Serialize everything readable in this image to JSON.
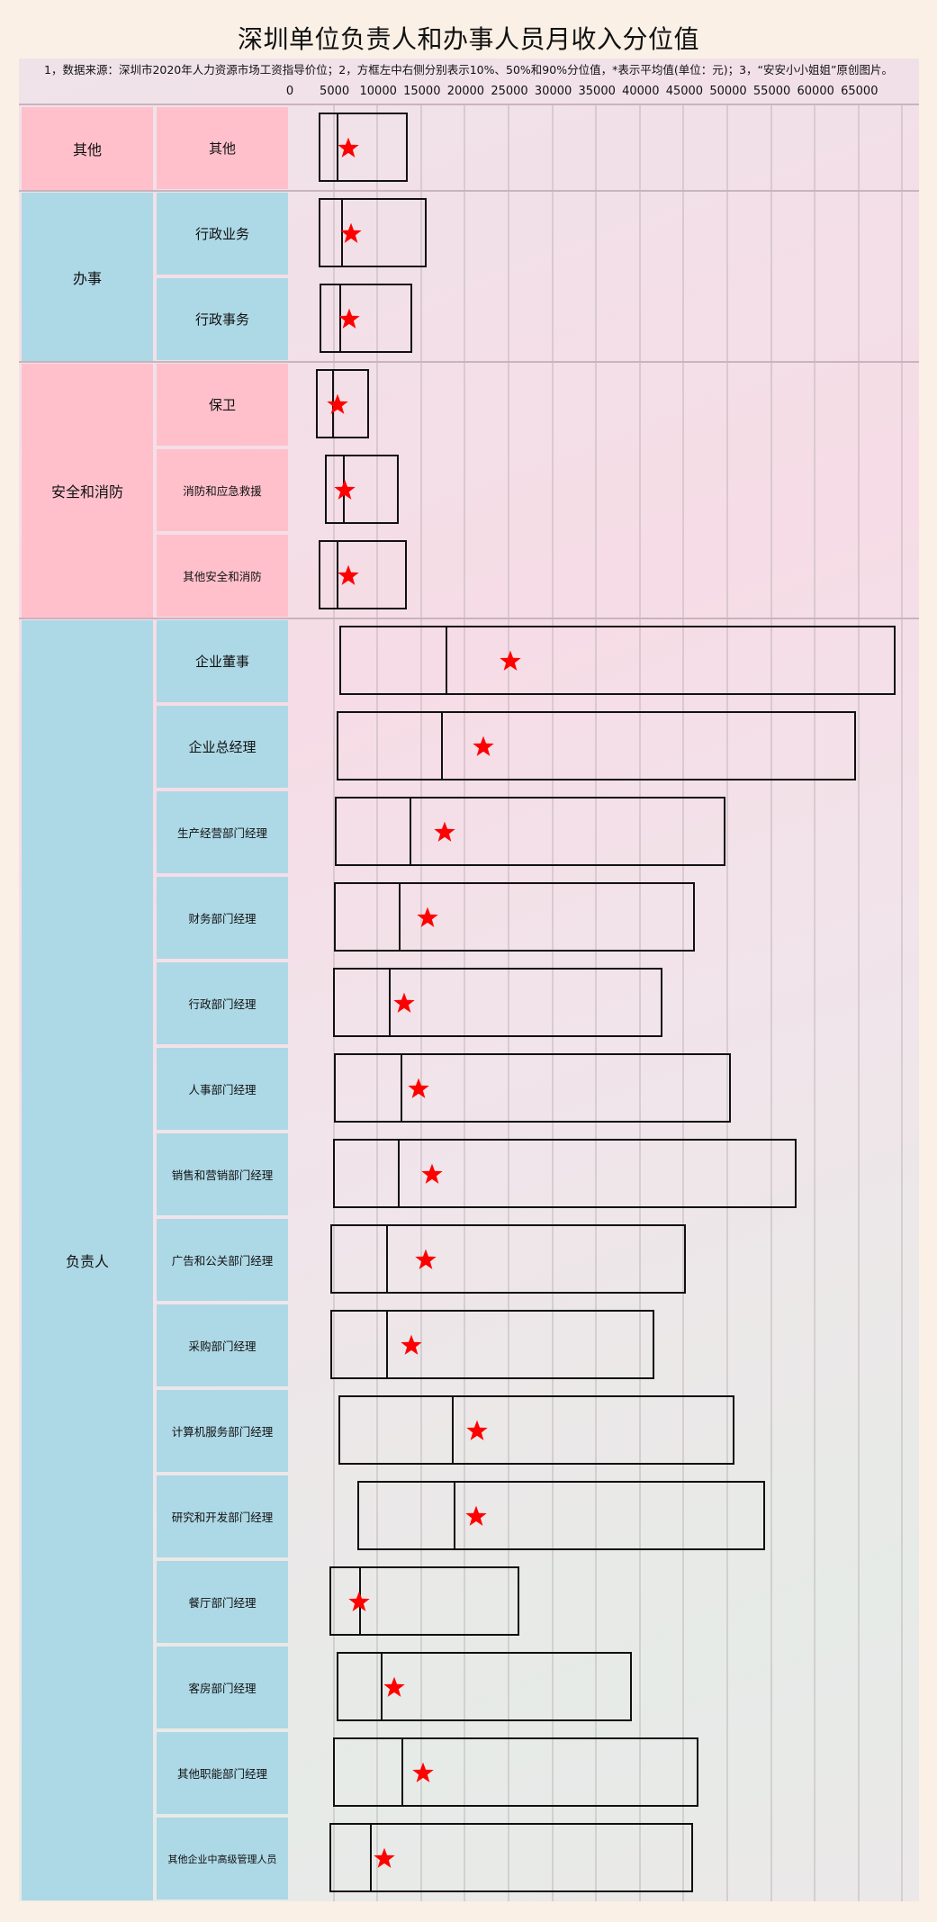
{
  "title": "深圳单位负责人和办事人员月收入分位值",
  "note": "1，数据来源：深圳市2020年人力资源市场工资指导价位；2，方框左中右侧分别表示10%、50%和90%分位值，*表示平均值(单位：元)；3，“安安小小姐姐”原创图片。",
  "colors": {
    "background": "#faf0e6",
    "pink_category": "#ffc0cb",
    "blue_category": "#add8e6",
    "box_stroke": "#111111",
    "mean_star": "#ff0000"
  },
  "axis": {
    "ticks": [
      "0",
      "5000",
      "10000",
      "15000",
      "20000",
      "25000",
      "30000",
      "35000",
      "40000",
      "45000",
      "50000",
      "55000",
      "60000",
      "65000"
    ]
  },
  "chart_data": {
    "type": "box",
    "title": "深圳单位负责人和办事人员月收入分位值",
    "xlabel": "",
    "ylabel": "",
    "unit": "元",
    "xlim": [
      0,
      70000
    ],
    "x_ticks": [
      0,
      5000,
      10000,
      15000,
      20000,
      25000,
      30000,
      35000,
      40000,
      45000,
      50000,
      55000,
      60000,
      65000
    ],
    "grid": true,
    "legend": "方框左中右侧分别表示10%、50%和90%分位值，*表示平均值",
    "groups": [
      {
        "category": "其他",
        "color": "pink",
        "items": [
          {
            "name": "其他",
            "p10": 3290,
            "p50": 5450,
            "p90": 13480,
            "mean": 6690
          }
        ]
      },
      {
        "category": "办事",
        "color": "blue",
        "items": [
          {
            "name": "行政业务",
            "p10": 3290,
            "p50": 5970,
            "p90": 15640,
            "mean": 7000
          },
          {
            "name": "行政事务",
            "p10": 3400,
            "p50": 5760,
            "p90": 13990,
            "mean": 6790
          }
        ]
      },
      {
        "category": "安全和消防",
        "color": "pink",
        "items": [
          {
            "name": "保卫",
            "p10": 2980,
            "p50": 4940,
            "p90": 9050,
            "mean": 5450
          },
          {
            "name": "消防和应急救援",
            "p10": 4010,
            "p50": 6170,
            "p90": 12450,
            "mean": 6280
          },
          {
            "name": "其他安全和消防",
            "p10": 3290,
            "p50": 5450,
            "p90": 13380,
            "mean": 6690
          }
        ]
      },
      {
        "category": "负责人",
        "color": "blue",
        "items": [
          {
            "name": "企业董事",
            "p10": 5660,
            "p50": 17900,
            "p90": 69250,
            "mean": 25210
          },
          {
            "name": "企业总经理",
            "p10": 5350,
            "p50": 17390,
            "p90": 64720,
            "mean": 22120
          },
          {
            "name": "生产经营部门经理",
            "p10": 5140,
            "p50": 13790,
            "p90": 49800,
            "mean": 17700
          },
          {
            "name": "财务部门经理",
            "p10": 5040,
            "p50": 12550,
            "p90": 46300,
            "mean": 15740
          },
          {
            "name": "行政部门经理",
            "p10": 4940,
            "p50": 11420,
            "p90": 42600,
            "mean": 13070
          },
          {
            "name": "人事部门经理",
            "p10": 5040,
            "p50": 12760,
            "p90": 50420,
            "mean": 14710
          },
          {
            "name": "销售和营销部门经理",
            "p10": 4940,
            "p50": 12450,
            "p90": 57930,
            "mean": 16260
          },
          {
            "name": "广告和公关部门经理",
            "p10": 4630,
            "p50": 11110,
            "p90": 45270,
            "mean": 15540
          },
          {
            "name": "采购部门经理",
            "p10": 4630,
            "p50": 11110,
            "p90": 41670,
            "mean": 13890
          },
          {
            "name": "计算机服务部门经理",
            "p10": 5560,
            "p50": 18620,
            "p90": 50830,
            "mean": 21400
          },
          {
            "name": "研究和开发部门经理",
            "p10": 7720,
            "p50": 18830,
            "p90": 54330,
            "mean": 21300
          },
          {
            "name": "餐厅部门经理",
            "p10": 4530,
            "p50": 8030,
            "p90": 26240,
            "mean": 7920
          },
          {
            "name": "客房部门经理",
            "p10": 5350,
            "p50": 10500,
            "p90": 39100,
            "mean": 11940
          },
          {
            "name": "其他职能部门经理",
            "p10": 4940,
            "p50": 12860,
            "p90": 46710,
            "mean": 15230
          },
          {
            "name": "其他企业中高级管理人员",
            "p10": 4530,
            "p50": 9260,
            "p90": 46100,
            "mean": 10800
          }
        ]
      }
    ]
  }
}
